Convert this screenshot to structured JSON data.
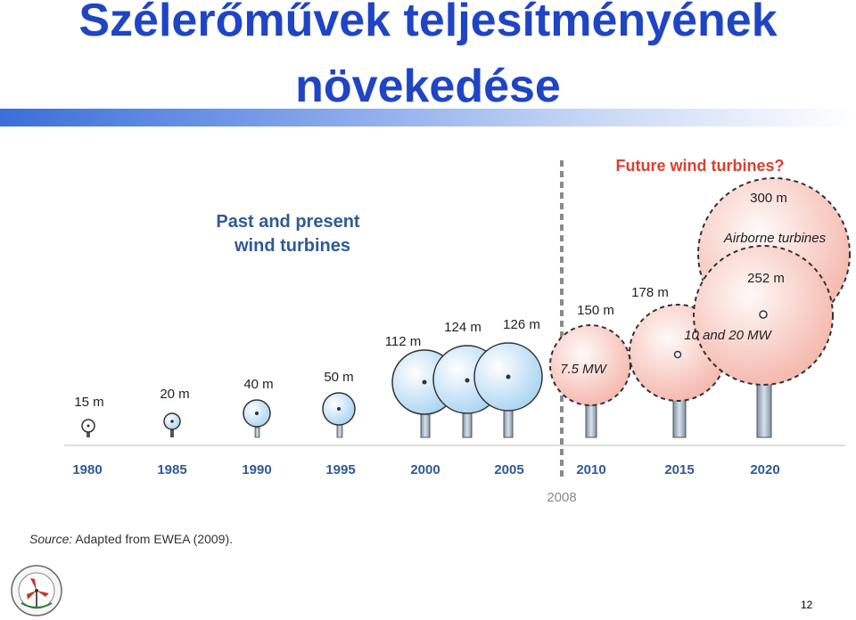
{
  "slide": {
    "title_line1": "Szélerőművek teljesítményének",
    "title_line2": "növekedése",
    "page_number": "12"
  },
  "diagram": {
    "past_label": [
      "Past and present",
      "wind turbines"
    ],
    "future_label": "Future wind turbines?",
    "divider_year": "2008",
    "airborne_label": "Airborne turbines",
    "power_label_small": "7.5 MW",
    "power_label_large": "10 and 20 MW",
    "source_prefix": "Source:",
    "source_text": "Adapted from EWEA (2009).",
    "turbines": [
      {
        "year": "1980",
        "diameter": "15 m",
        "era": "past"
      },
      {
        "year": "1985",
        "diameter": "20 m",
        "era": "past"
      },
      {
        "year": "1990",
        "diameter": "40 m",
        "era": "past"
      },
      {
        "year": "1995",
        "diameter": "50 m",
        "era": "past"
      },
      {
        "year": "2000",
        "diameter": "112 m",
        "era": "past"
      },
      {
        "year": "2005",
        "diameter": "124 m",
        "era": "past"
      },
      {
        "year": "2005",
        "diameter": "126 m",
        "era": "past"
      },
      {
        "year": "2010",
        "diameter": "150 m",
        "era": "future"
      },
      {
        "year": "2015",
        "diameter": "178 m",
        "era": "future"
      },
      {
        "year": "2020",
        "diameter": "252 m",
        "era": "future"
      },
      {
        "year": "",
        "diameter": "300 m",
        "era": "airborne"
      }
    ],
    "axis_years": [
      "1980",
      "1985",
      "1990",
      "1995",
      "2000",
      "2005",
      "2010",
      "2015",
      "2020"
    ],
    "colors": {
      "title": "#1f45c5",
      "past_fill": "#bcdff5",
      "future_fill": "#f7c9c0",
      "future_text": "#d9412f",
      "past_text": "#2f5a96"
    }
  }
}
